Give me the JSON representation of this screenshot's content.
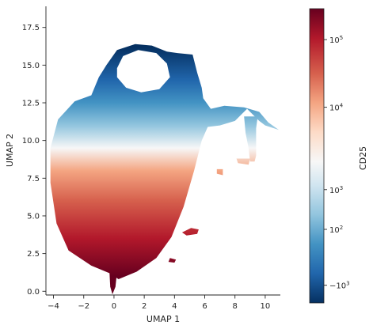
{
  "chart_data": {
    "type": "scatter",
    "title": "",
    "xlabel": "UMAP 1",
    "ylabel": "UMAP 2",
    "xlim": [
      -4.5,
      11
    ],
    "ylim": [
      -0.3,
      18.9
    ],
    "xticks": [
      -4,
      -2,
      0,
      2,
      4,
      6,
      8,
      10
    ],
    "xtick_labels": [
      "−4",
      "−2",
      "0",
      "2",
      "4",
      "6",
      "8",
      "10"
    ],
    "yticks": [
      0.0,
      2.5,
      5.0,
      7.5,
      10.0,
      12.5,
      15.0,
      17.5
    ],
    "ytick_labels": [
      "0.0",
      "2.5",
      "5.0",
      "7.5",
      "10.0",
      "12.5",
      "15.0",
      "17.5"
    ],
    "grid": false,
    "colorbar": {
      "label": "CD25",
      "colormap": "RdBu_r",
      "scale": "symlog",
      "ticks": [
        {
          "label_base": "−10",
          "exp": "3",
          "frac": 0.06
        },
        {
          "label_base": "10",
          "exp": "2",
          "frac": 0.25
        },
        {
          "label_base": "10",
          "exp": "3",
          "frac": 0.385
        },
        {
          "label_base": "10",
          "exp": "4",
          "frac": 0.665
        },
        {
          "label_base": "10",
          "exp": "5",
          "frac": 0.895
        }
      ]
    },
    "regions": [
      {
        "name": "main-body",
        "points": [
          [
            -1.5,
            13.0
          ],
          [
            -2.6,
            12.6
          ],
          [
            -3.7,
            11.4
          ],
          [
            -4.2,
            9.5
          ],
          [
            -4.2,
            7.2
          ],
          [
            -3.8,
            4.5
          ],
          [
            -3.0,
            2.7
          ],
          [
            -1.5,
            1.7
          ],
          [
            -0.3,
            1.2
          ],
          [
            0.3,
            0.8
          ],
          [
            1.5,
            1.3
          ],
          [
            2.8,
            2.2
          ],
          [
            3.8,
            3.6
          ],
          [
            4.6,
            5.6
          ],
          [
            5.3,
            8.0
          ],
          [
            5.8,
            10.0
          ],
          [
            6.2,
            10.9
          ],
          [
            7.0,
            11.0
          ],
          [
            8.0,
            11.3
          ],
          [
            8.5,
            11.8
          ],
          [
            8.8,
            12.1
          ],
          [
            9.6,
            11.3
          ],
          [
            10.0,
            11.0
          ],
          [
            10.9,
            10.7
          ],
          [
            10.2,
            11.2
          ],
          [
            9.6,
            11.9
          ],
          [
            8.6,
            12.2
          ],
          [
            7.3,
            12.3
          ],
          [
            6.4,
            12.1
          ],
          [
            5.9,
            12.8
          ],
          [
            5.8,
            13.5
          ],
          [
            5.5,
            14.5
          ],
          [
            5.2,
            15.7
          ],
          [
            4.2,
            15.8
          ],
          [
            3.5,
            15.9
          ],
          [
            2.5,
            16.3
          ],
          [
            1.4,
            16.4
          ],
          [
            0.2,
            16.0
          ],
          [
            -0.5,
            15.0
          ],
          [
            -1.0,
            14.2
          ]
        ]
      },
      {
        "name": "lower-stem",
        "points": [
          [
            -0.3,
            1.3
          ],
          [
            0.2,
            1.3
          ],
          [
            0.1,
            0.3
          ],
          [
            -0.1,
            -0.2
          ],
          [
            -0.25,
            0.3
          ]
        ]
      },
      {
        "name": "right-branch",
        "points": [
          [
            8.6,
            11.6
          ],
          [
            9.5,
            11.6
          ],
          [
            9.4,
            10.8
          ],
          [
            9.4,
            9.0
          ],
          [
            9.3,
            8.6
          ],
          [
            9.0,
            8.6
          ],
          [
            8.9,
            9.5
          ],
          [
            8.7,
            10.5
          ]
        ]
      },
      {
        "name": "cluster-a",
        "points": [
          [
            4.5,
            3.9
          ],
          [
            5.1,
            4.2
          ],
          [
            5.6,
            4.1
          ],
          [
            5.5,
            3.8
          ],
          [
            4.8,
            3.7
          ]
        ]
      },
      {
        "name": "cluster-b",
        "points": [
          [
            3.7,
            2.2
          ],
          [
            4.1,
            2.1
          ],
          [
            4.0,
            1.9
          ],
          [
            3.6,
            1.95
          ]
        ]
      },
      {
        "name": "cluster-c",
        "points": [
          [
            6.8,
            8.1
          ],
          [
            7.2,
            8.1
          ],
          [
            7.2,
            7.7
          ],
          [
            6.8,
            7.8
          ]
        ]
      },
      {
        "name": "cluster-d",
        "points": [
          [
            8.1,
            8.8
          ],
          [
            9.0,
            8.8
          ],
          [
            8.9,
            8.4
          ],
          [
            8.2,
            8.5
          ]
        ]
      }
    ],
    "hole": {
      "name": "upper-hole",
      "points": [
        [
          0.2,
          14.8
        ],
        [
          0.6,
          15.6
        ],
        [
          1.6,
          16.0
        ],
        [
          2.8,
          15.8
        ],
        [
          3.5,
          15.1
        ],
        [
          3.7,
          14.2
        ],
        [
          3.0,
          13.4
        ],
        [
          1.8,
          13.2
        ],
        [
          0.8,
          13.5
        ],
        [
          0.2,
          14.2
        ]
      ]
    },
    "color_gradient_by_y": [
      {
        "y": 1.0,
        "color": "#67001f"
      },
      {
        "y": 3.5,
        "color": "#b2182b"
      },
      {
        "y": 6.0,
        "color": "#d6604d"
      },
      {
        "y": 8.0,
        "color": "#f4a582"
      },
      {
        "y": 9.5,
        "color": "#f7f7f7"
      },
      {
        "y": 11.0,
        "color": "#92c5de"
      },
      {
        "y": 12.5,
        "color": "#4393c3"
      },
      {
        "y": 14.0,
        "color": "#2166ac"
      },
      {
        "y": 16.2,
        "color": "#053061"
      }
    ]
  }
}
